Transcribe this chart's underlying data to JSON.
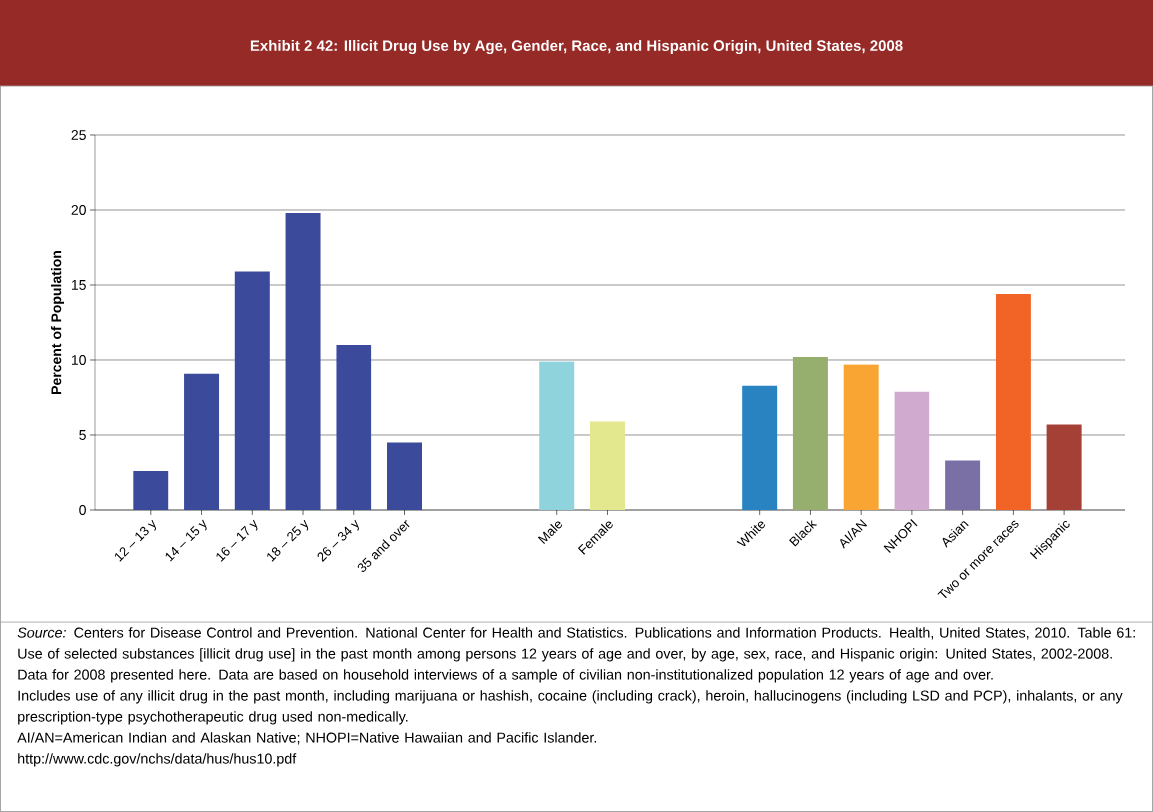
{
  "chart_data": {
    "type": "bar",
    "title": "Exhibit 2 42: Illicit Drug Use by Age, Gender, Race, and Hispanic Origin, United States, 2008",
    "ylabel": "Percent of Population",
    "categories": [
      "12 – 13 y",
      "14 – 15 y",
      "16 – 17 y",
      "18 – 25 y",
      "26 – 34 y",
      "35 and over",
      null,
      null,
      "Male",
      "Female",
      null,
      null,
      "White",
      "Black",
      "AI/AN",
      "NHOPI",
      "Asian",
      "Two or more races",
      "Hispanic"
    ],
    "values": [
      2.6,
      9.1,
      15.9,
      19.8,
      11.0,
      4.5,
      null,
      null,
      9.9,
      5.9,
      null,
      null,
      8.3,
      10.2,
      9.7,
      7.9,
      3.3,
      14.4,
      5.7
    ],
    "colors": [
      "#3c4a9c",
      "#3c4a9c",
      "#3c4a9c",
      "#3c4a9c",
      "#3c4a9c",
      "#3c4a9c",
      null,
      null,
      "#8fd3dc",
      "#e3e88f",
      null,
      null,
      "#2983c1",
      "#96ae6e",
      "#f8a533",
      "#d0aacf",
      "#7a70a5",
      "#f26426",
      "#a54036"
    ],
    "ylim": [
      0,
      25
    ],
    "yticks": [
      0,
      5,
      10,
      15,
      20,
      25
    ],
    "grid": "y",
    "annotations": [
      "*Source:* Centers for Disease Control and Prevention. National Center for Health and Statistics. Publications and Information Products. Health, United States, 2010. Table 61: Use of selected substances [illicit drug use] in the past month among persons 12 years of age and over, by age, sex, race, and Hispanic origin: United States, 2002-2008. Data for 2008 presented here. Data are based on household interviews of a sample of civilian non-institutionalized population 12 years of age and over.",
      "Includes use of any illicit drug in the past month, including marijuana or hashish, cocaine (including crack), heroin, hallucinogens (including LSD and PCP), inhalants, or any prescription-type psychotherapeutic drug used non-medically.",
      "AI/AN=American Indian and Alaskan Native; NHOPI=Native Hawaiian and Pacific Islander.",
      "http://www.cdc.gov/nchs/data/hus/hus10.pdf"
    ]
  }
}
